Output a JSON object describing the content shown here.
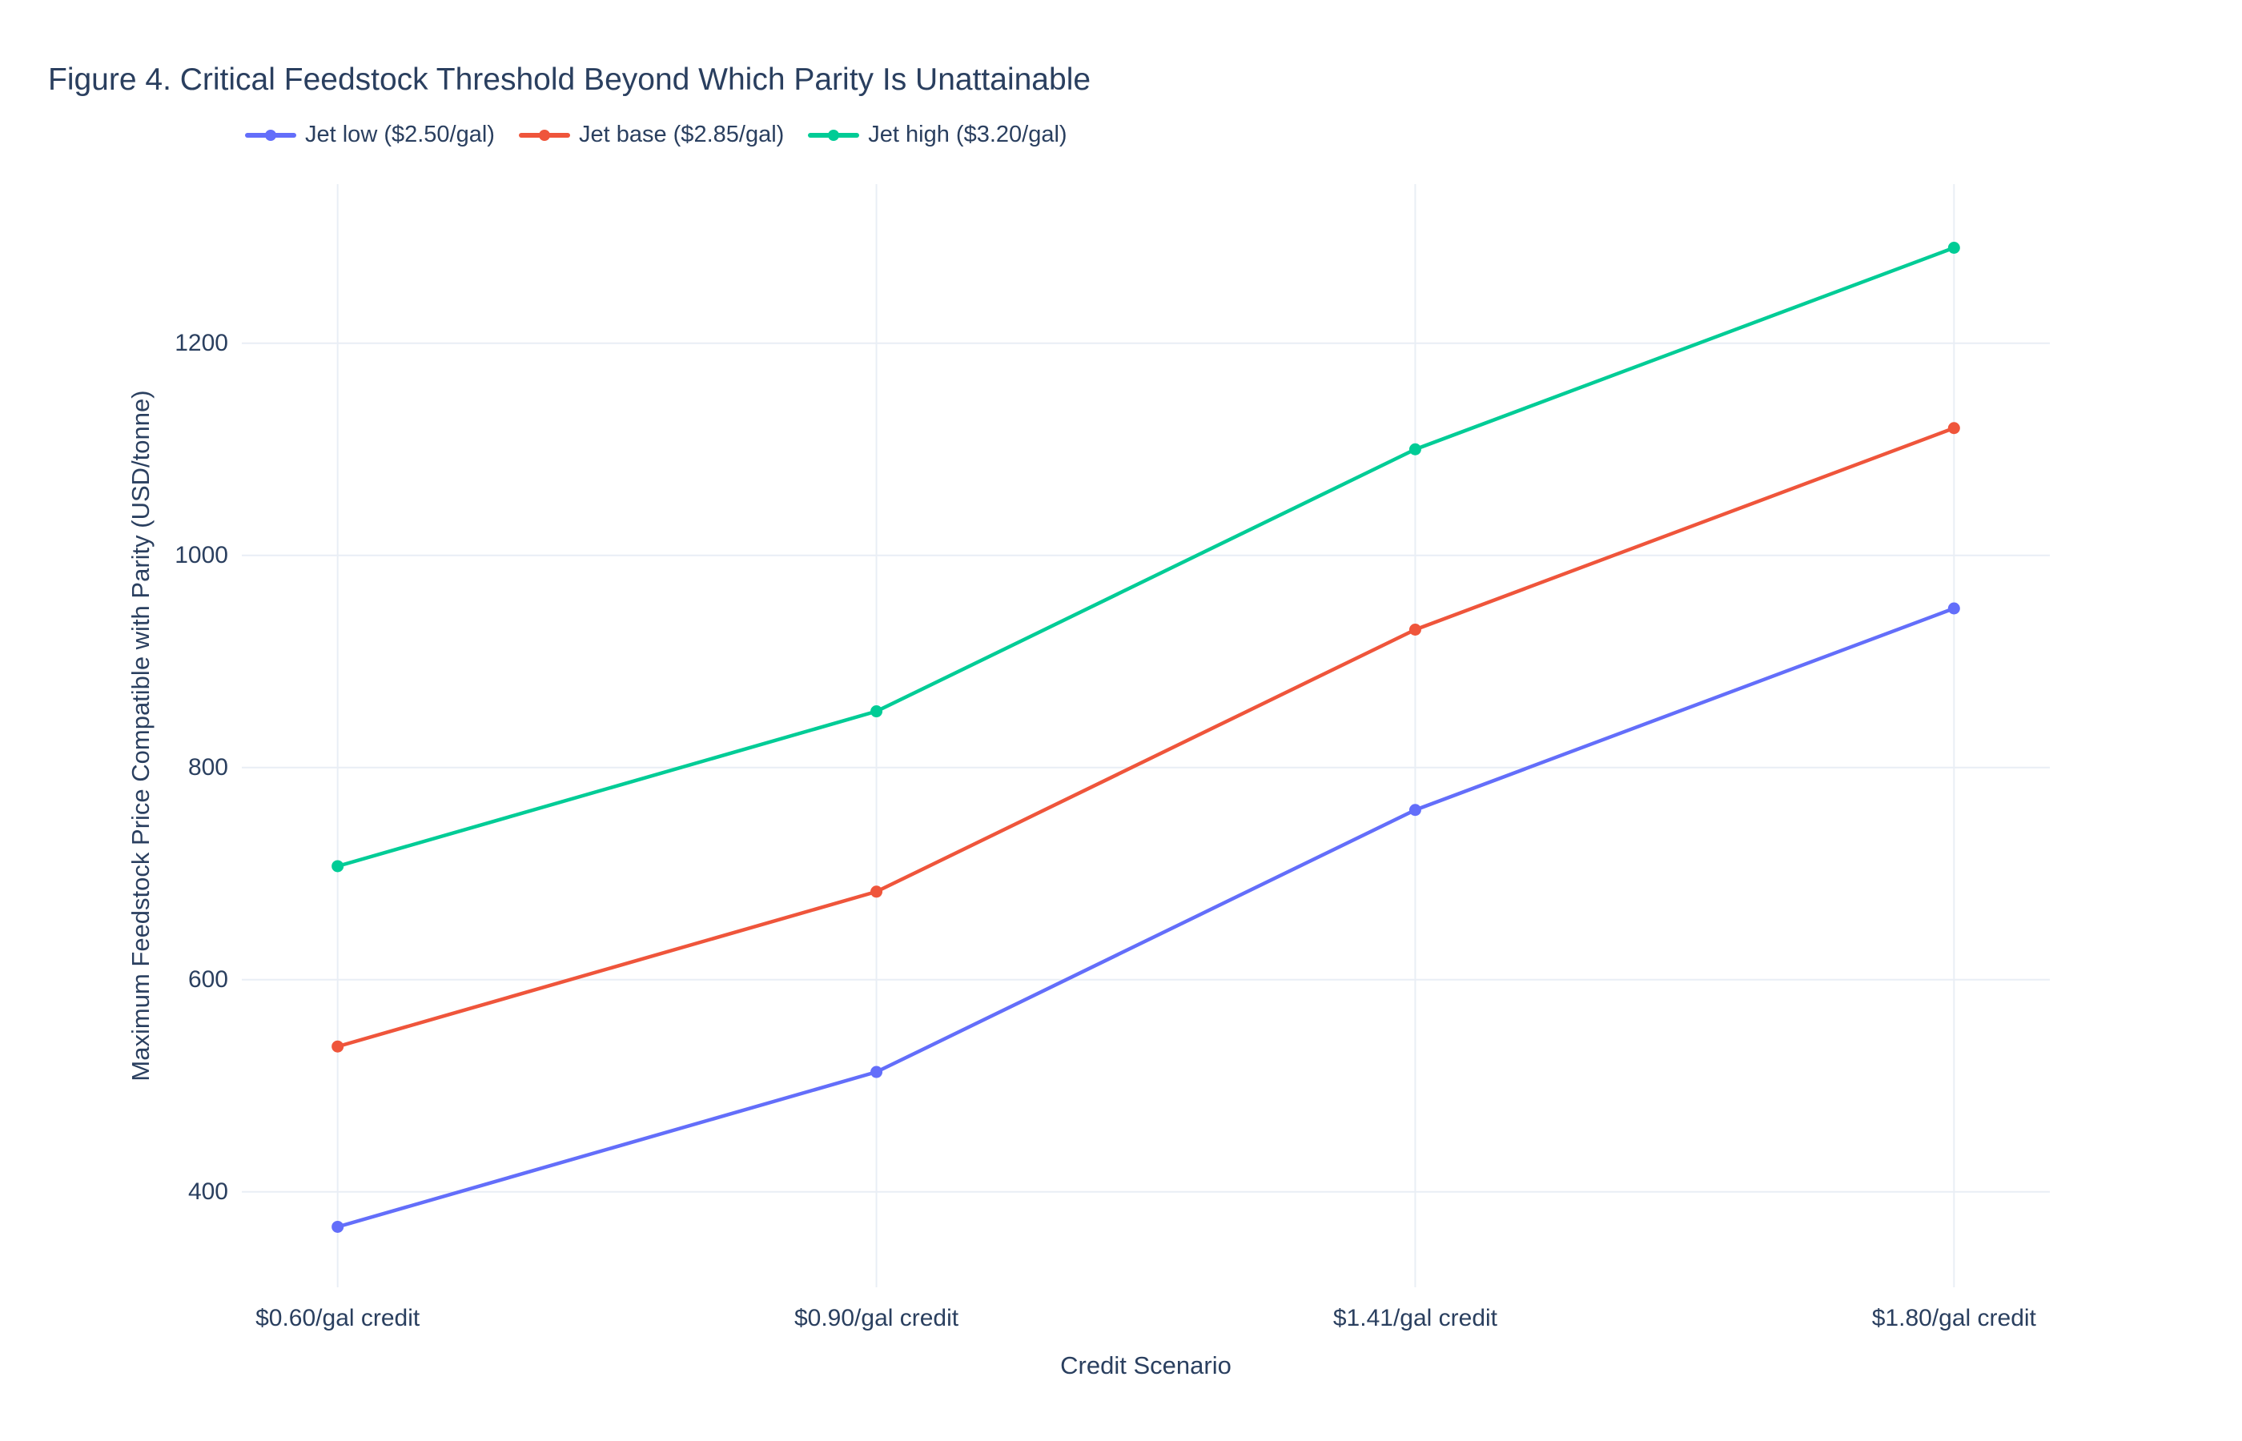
{
  "chart_data": {
    "type": "line",
    "title": "Figure 4. Critical Feedstock Threshold Beyond Which Parity Is Unattainable",
    "categories": [
      "$0.60/gal credit",
      "$0.90/gal credit",
      "$1.41/gal credit",
      "$1.80/gal credit"
    ],
    "series": [
      {
        "name": "Jet low ($2.50/gal)",
        "color": "#636efa",
        "values": [
          367,
          513,
          760,
          950
        ]
      },
      {
        "name": "Jet base ($2.85/gal)",
        "color": "#ef553b",
        "values": [
          537,
          683,
          930,
          1120
        ]
      },
      {
        "name": "Jet high ($3.20/gal)",
        "color": "#00cc96",
        "values": [
          707,
          853,
          1100,
          1290
        ]
      }
    ],
    "xlabel": "Credit Scenario",
    "ylabel": "Maximum Feedstock Price Compatible with Parity (USD/tonne)",
    "yticks": [
      400,
      600,
      800,
      1000,
      1200
    ],
    "ylim": [
      310,
      1350
    ],
    "grid": true,
    "legend_position": "top-horizontal",
    "colors": {
      "text": "#2a3f5f",
      "grid": "#e9eef5",
      "background": "#ffffff"
    }
  }
}
